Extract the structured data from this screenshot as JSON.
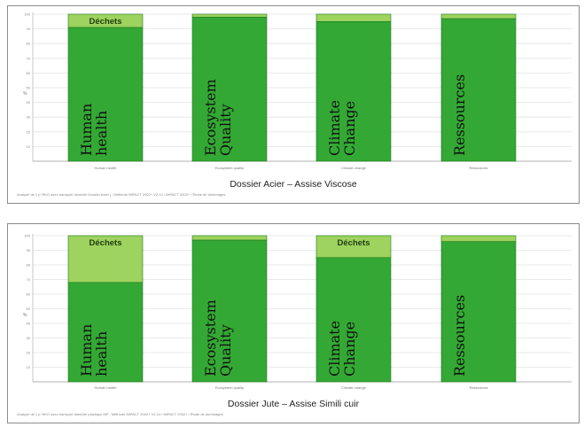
{
  "chart_data": [
    {
      "type": "bar",
      "stacked": true,
      "title": "Dossier Acier – Assise Viscose",
      "footnote": "Analyse de 1 p 'NKO avec transport domicile Dossier Acier | ; Méthode IMPACT 2002+ V2.14 / IMPACT 2002+ / Étude de dommages",
      "ylabel": "%",
      "ylim": [
        0,
        100
      ],
      "yticks": [
        10,
        20,
        30,
        40,
        50,
        60,
        70,
        80,
        90,
        100
      ],
      "grid": true,
      "categories": [
        "Human health",
        "Ecosystem quality",
        "Climate change",
        "Ressources"
      ],
      "overlay_labels": [
        "Human health",
        "Ecosystem Quality",
        "Climate Change",
        "Ressources"
      ],
      "series": [
        {
          "values": [
            91,
            98,
            95,
            97
          ],
          "color": "#34a834"
        },
        {
          "name": "Déchets",
          "values": [
            9,
            2,
            5,
            3
          ],
          "color": "#9dd35e"
        }
      ],
      "segment_labels": [
        {
          "category": "Human health",
          "text": "Déchets"
        }
      ]
    },
    {
      "type": "bar",
      "stacked": true,
      "title": "Dossier Jute – Assise Simili cuir",
      "footnote": "Analyse de 1 p 'NKO avec transport domicile plastique MP ; Méthode IMPACT 2002+ V2.14 / IMPACT 2002+ / Étude de dommages",
      "ylabel": "%",
      "ylim": [
        0,
        100
      ],
      "yticks": [
        10,
        20,
        30,
        40,
        50,
        60,
        70,
        80,
        90,
        100
      ],
      "grid": true,
      "categories": [
        "Human health",
        "Ecosystem quality",
        "Climate change",
        "Ressources"
      ],
      "overlay_labels": [
        "Human health",
        "Ecosystem Quality",
        "Climate Change",
        "Ressources"
      ],
      "series": [
        {
          "values": [
            68,
            97,
            85,
            96
          ],
          "color": "#34a834"
        },
        {
          "name": "Déchets",
          "values": [
            32,
            3,
            15,
            4
          ],
          "color": "#9dd35e"
        }
      ],
      "segment_labels": [
        {
          "category": "Human health",
          "text": "Déchets"
        },
        {
          "category": "Climate change",
          "text": "Déchets"
        }
      ]
    }
  ]
}
